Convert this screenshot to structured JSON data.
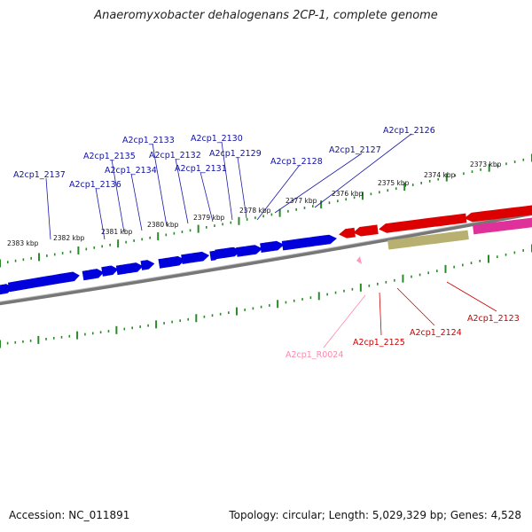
{
  "title": "Anaeromyxobacter dehalogenans 2CP-1, complete genome",
  "footer": {
    "accession": "Accession: NC_011891",
    "summary": "Topology: circular; Length: 5,029,329 bp; Genes: 4,528"
  },
  "kbp_labels": [
    "2383 kbp",
    "2382 kbp",
    "2381 kbp",
    "2380 kbp",
    "2379 kbp",
    "2378 kbp",
    "2377 kbp",
    "2376 kbp",
    "2375 kbp",
    "2374 kbp",
    "2373 kbp"
  ],
  "gene_labels_upper": [
    "A2cp1_2137",
    "A2cp1_2136",
    "A2cp1_2135",
    "A2cp1_2134",
    "A2cp1_2133",
    "A2cp1_2132",
    "A2cp1_2131",
    "A2cp1_2130",
    "A2cp1_2129",
    "A2cp1_2128",
    "A2cp1_2127",
    "A2cp1_2126"
  ],
  "gene_labels_lower": [
    "A2cp1_R0024",
    "A2cp1_2125",
    "A2cp1_2124",
    "A2cp1_2123"
  ],
  "colors": {
    "minus_strand_gene": "#0000dd",
    "plus_strand_gene": "#dd0000",
    "rna_gene": "#ff99bb",
    "pseudo_gene": "#b8b070",
    "magenta_gene": "#e0309a",
    "tick": "#2a8a2a",
    "backbone": "#777777"
  }
}
